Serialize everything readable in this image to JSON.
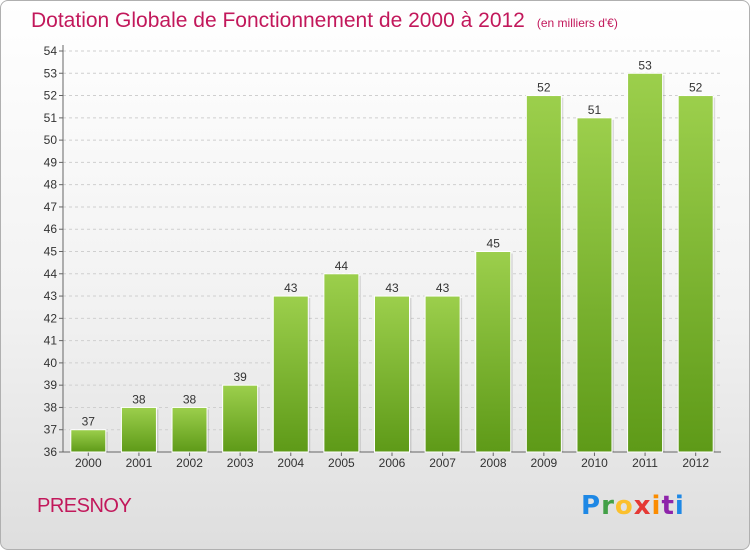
{
  "header": {
    "title": "Dotation Globale de Fonctionnement de 2000 à 2012",
    "subtitle": "(en milliers d'€)"
  },
  "footer": {
    "commune": "PRESNOY",
    "logo": "Proxiti"
  },
  "colors": {
    "title": "#c2185b",
    "bar_top": "#9ccf4c",
    "bar_bottom": "#5e9a18"
  },
  "chart_data": {
    "type": "bar",
    "title": "Dotation Globale de Fonctionnement de 2000 à 2012",
    "subtitle": "(en milliers d'€)",
    "categories": [
      "2000",
      "2001",
      "2002",
      "2003",
      "2004",
      "2005",
      "2006",
      "2007",
      "2008",
      "2009",
      "2010",
      "2011",
      "2012"
    ],
    "values": [
      37,
      38,
      38,
      39,
      43,
      44,
      43,
      43,
      45,
      52,
      51,
      53,
      52
    ],
    "ylim": [
      36,
      54
    ],
    "yticks": [
      36,
      37,
      38,
      39,
      40,
      41,
      42,
      43,
      44,
      45,
      46,
      47,
      48,
      49,
      50,
      51,
      52,
      53,
      54
    ],
    "grid": true,
    "legend": "none"
  }
}
